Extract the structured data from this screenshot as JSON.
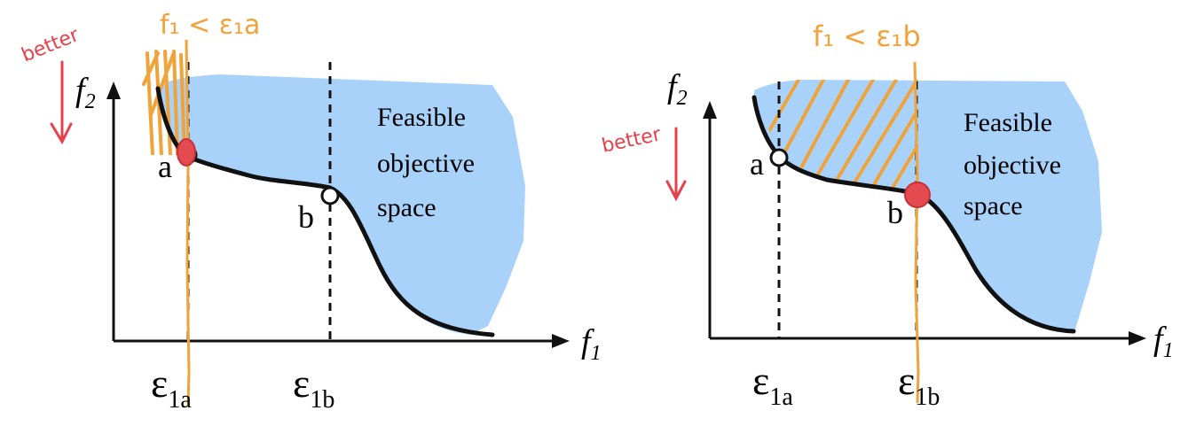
{
  "colors": {
    "feasible_fill": "#a9d2fb",
    "curve": "#111111",
    "hatch": "#f0a33a",
    "annotation_red": "#e8404a",
    "selected_point": "#e34b4f"
  },
  "left_panel": {
    "annotation_constraint": "f₁ < ε₁a",
    "annotation_better": "better",
    "axis_x": {
      "base": "f",
      "sub": "1"
    },
    "axis_y": {
      "base": "f",
      "sub": "2"
    },
    "region_label": [
      "Feasible",
      "objective",
      "space"
    ],
    "point_a": "a",
    "point_b": "b",
    "epsilon_a": {
      "base": "ε",
      "sub": "1a"
    },
    "epsilon_b": {
      "base": "ε",
      "sub": "1b"
    },
    "selected_point": "a"
  },
  "right_panel": {
    "annotation_constraint": "f₁ < ε₁b",
    "annotation_better": "better",
    "axis_x": {
      "base": "f",
      "sub": "1"
    },
    "axis_y": {
      "base": "f",
      "sub": "2"
    },
    "region_label": [
      "Feasible",
      "objective",
      "space"
    ],
    "point_a": "a",
    "point_b": "b",
    "epsilon_a": {
      "base": "ε",
      "sub": "1a"
    },
    "epsilon_b": {
      "base": "ε",
      "sub": "1b"
    },
    "selected_point": "b"
  }
}
